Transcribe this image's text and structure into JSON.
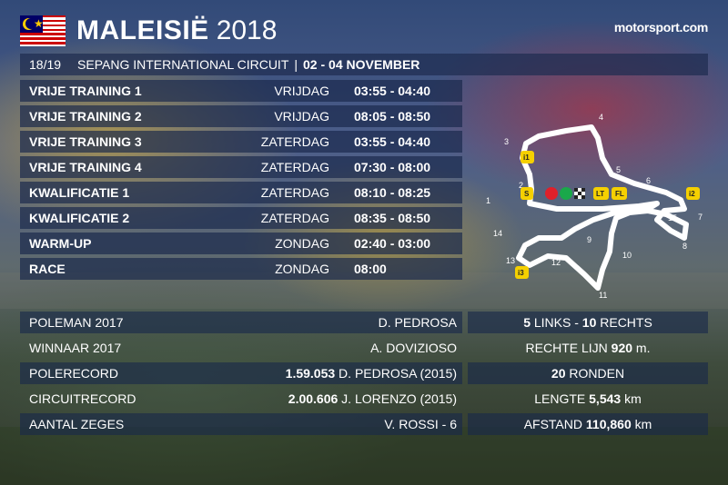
{
  "header": {
    "country": "MALEISIË",
    "year": "2018",
    "logo": "motorsport.com"
  },
  "info_bar": {
    "round": "18/19",
    "circuit": "SEPANG INTERNATIONAL CIRCUIT",
    "separator": "|",
    "dates": "02 - 04 NOVEMBER"
  },
  "schedule": [
    {
      "session": "VRIJE TRAINING 1",
      "day": "VRIJDAG",
      "time": "03:55 - 04:40"
    },
    {
      "session": "VRIJE TRAINING 2",
      "day": "VRIJDAG",
      "time": "08:05 - 08:50"
    },
    {
      "session": "VRIJE TRAINING 3",
      "day": "ZATERDAG",
      "time": "03:55 - 04:40"
    },
    {
      "session": "VRIJE TRAINING 4",
      "day": "ZATERDAG",
      "time": "07:30 - 08:00"
    },
    {
      "session": "KWALIFICATIE 1",
      "day": "ZATERDAG",
      "time": "08:10 - 08:25"
    },
    {
      "session": "KWALIFICATIE 2",
      "day": "ZATERDAG",
      "time": "08:35 - 08:50"
    },
    {
      "session": "WARM-UP",
      "day": "ZONDAG",
      "time": "02:40 - 03:00"
    },
    {
      "session": "RACE",
      "day": "ZONDAG",
      "time": "08:00"
    }
  ],
  "stats": [
    {
      "label": "POLEMAN 2017",
      "value_bold": "",
      "value": "D. PEDROSA"
    },
    {
      "label": "WINNAAR 2017",
      "value_bold": "",
      "value": "A. DOVIZIOSO"
    },
    {
      "label": "POLERECORD",
      "value_bold": "1.59.053",
      "value": " D. PEDROSA (2015)"
    },
    {
      "label": "CIRCUITRECORD",
      "value_bold": "2.00.606",
      "value": " J. LORENZO (2015)"
    },
    {
      "label": "AANTAL ZEGES",
      "value_bold": "",
      "value": "V. ROSSI - 6"
    }
  ],
  "circuit_stats": [
    {
      "b1": "5",
      "t1": " LINKS - ",
      "b2": "10",
      "t2": " RECHTS"
    },
    {
      "b1": "",
      "t1": "RECHTE LIJN ",
      "b2": "920",
      "t2": " m."
    },
    {
      "b1": "20",
      "t1": " RONDEN",
      "b2": "",
      "t2": ""
    },
    {
      "b1": "",
      "t1": "LENGTE ",
      "b2": "5,543",
      "t2": " km"
    },
    {
      "b1": "",
      "t1": "AFSTAND ",
      "b2": "110,860",
      "t2": " km"
    }
  ],
  "track": {
    "turns": [
      "1",
      "2",
      "3",
      "4",
      "5",
      "6",
      "7",
      "8",
      "9",
      "10",
      "11",
      "12",
      "13",
      "14",
      "15"
    ],
    "markers": [
      "S",
      "LT",
      "FL",
      "i1",
      "i2",
      "i3"
    ],
    "colors": {
      "track": "#ffffff",
      "marker": "#f5d000",
      "red": "#e0202a",
      "green": "#1aa84a"
    }
  }
}
